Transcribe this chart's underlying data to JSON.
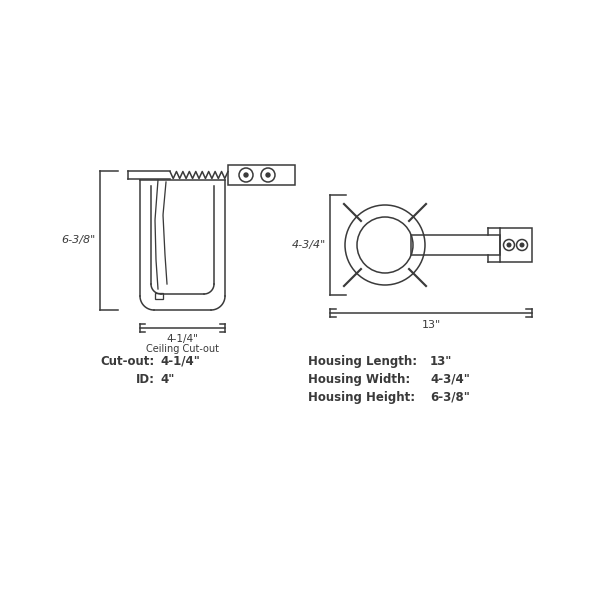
{
  "bg_color": "#ffffff",
  "line_color": "#3a3a3a",
  "fig_width": 6.0,
  "fig_height": 6.0,
  "dim_label_height": "6-3/8\"",
  "dim_label_width": "4-1/4\"",
  "dim_label_cutout": "Ceiling Cut-out",
  "dim_label_43_4": "4-3/4\"",
  "dim_label_13": "13\"",
  "specs": {
    "cutout_label": "Cut-out:",
    "cutout_val": "4-1/4\"",
    "id_label": "ID:",
    "id_val": "4\"",
    "hl_label": "Housing Length:",
    "hl_val": "13\"",
    "hw_label": "Housing Width:",
    "hw_val": "4-3/4\"",
    "hh_label": "Housing Height:",
    "hh_val": "6-3/8\""
  }
}
